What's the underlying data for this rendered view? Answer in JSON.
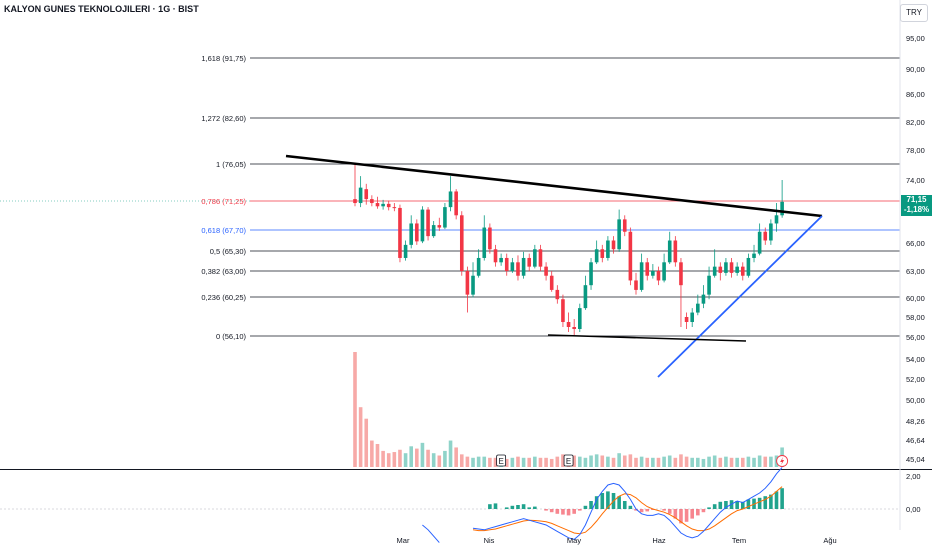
{
  "header": {
    "title": "KALYON GUNES TEKNOLOJILERI · 1G · BIST",
    "currency": "TRY"
  },
  "last_price": {
    "price": "71,15",
    "change": "-1,18%",
    "value": 71.15,
    "color": "#089981"
  },
  "colors": {
    "up": "#089981",
    "down": "#f23645",
    "vol_up": "#8fd3c9",
    "vol_down": "#f7a9a7",
    "trend": "#000000",
    "support": "#2962ff",
    "macd": "#2962ff",
    "signal": "#ff6d00"
  },
  "chart_data": [
    {
      "type": "candlestick",
      "title": "KALYON GUNES TEKNOLOJILERI · 1G · BIST",
      "yticks": [
        "95,00",
        "90,00",
        "86,00",
        "82,00",
        "78,00",
        "74,00",
        "71,15",
        "66,00",
        "63,00",
        "60,00",
        "58,00",
        "56,00",
        "54,00",
        "52,00",
        "50,00",
        "48,26",
        "46,64",
        "45,04"
      ],
      "xticks": [
        "Mar",
        "Nis",
        "May",
        "Haz",
        "Tem",
        "Ağu"
      ],
      "fib_levels": [
        {
          "label": "1,618 (91,75)",
          "value": 91.75,
          "color": "#131722"
        },
        {
          "label": "1,272 (82,60)",
          "value": 82.6,
          "color": "#131722"
        },
        {
          "label": "1 (76,05)",
          "value": 76.05,
          "color": "#131722"
        },
        {
          "label": "0,786 (71,25)",
          "value": 71.25,
          "color": "#f23645"
        },
        {
          "label": "0,618 (67,70)",
          "value": 67.7,
          "color": "#2962ff"
        },
        {
          "label": "0,5 (65,30)",
          "value": 65.3,
          "color": "#131722"
        },
        {
          "label": "0,382 (63,00)",
          "value": 63.0,
          "color": "#131722"
        },
        {
          "label": "0,236 (60,25)",
          "value": 60.25,
          "color": "#131722"
        },
        {
          "label": "0 (56,10)",
          "value": 56.1,
          "color": "#131722"
        }
      ],
      "trendlines": [
        {
          "name": "resistance",
          "from": [
            0,
            77.3
          ],
          "to": [
            110,
            68.9
          ]
        },
        {
          "name": "support",
          "from": [
            71,
            51.8
          ],
          "to": [
            110,
            68.9
          ]
        },
        {
          "name": "bottom",
          "from": [
            37,
            56.1
          ],
          "to": [
            72,
            55.6
          ]
        }
      ],
      "markers": [
        "E",
        "E"
      ],
      "candles": [
        [
          71.5,
          71.0,
          76.0,
          70.6
        ],
        [
          71.0,
          73.0,
          74.5,
          70.5
        ],
        [
          72.8,
          71.5,
          73.5,
          70.8
        ],
        [
          71.5,
          71.0,
          72.0,
          70.6
        ],
        [
          71.0,
          70.6,
          71.8,
          70.3
        ],
        [
          70.6,
          70.9,
          71.4,
          70.2
        ],
        [
          70.9,
          70.5,
          71.3,
          70.1
        ],
        [
          70.5,
          70.4,
          71.0,
          70.0
        ],
        [
          70.4,
          64.5,
          70.8,
          64.0
        ],
        [
          64.5,
          66.0,
          66.5,
          64.2
        ],
        [
          66.0,
          68.5,
          69.5,
          65.6
        ],
        [
          68.5,
          66.4,
          69.0,
          66.0
        ],
        [
          66.4,
          70.2,
          70.6,
          66.2
        ],
        [
          70.2,
          67.0,
          70.5,
          66.5
        ],
        [
          67.0,
          68.3,
          68.8,
          66.8
        ],
        [
          68.3,
          68.0,
          69.2,
          67.6
        ],
        [
          68.0,
          70.5,
          71.0,
          67.8
        ],
        [
          70.5,
          72.5,
          74.5,
          70.0
        ],
        [
          72.5,
          69.5,
          72.8,
          69.0
        ],
        [
          69.5,
          63.0,
          70.0,
          62.5
        ],
        [
          63.0,
          60.5,
          63.5,
          58.5
        ],
        [
          60.5,
          62.5,
          64.0,
          60.2
        ],
        [
          62.5,
          64.5,
          65.5,
          62.3
        ],
        [
          64.5,
          68.0,
          69.5,
          64.2
        ],
        [
          68.0,
          65.5,
          68.5,
          65.0
        ],
        [
          65.5,
          64.0,
          66.0,
          63.5
        ],
        [
          64.0,
          64.5,
          65.0,
          63.6
        ],
        [
          64.5,
          63.0,
          65.0,
          62.5
        ],
        [
          63.0,
          64.0,
          64.5,
          62.8
        ],
        [
          64.0,
          62.5,
          64.8,
          62.0
        ],
        [
          62.5,
          64.5,
          65.2,
          62.2
        ],
        [
          64.5,
          63.5,
          65.0,
          63.0
        ],
        [
          63.5,
          65.5,
          66.0,
          63.3
        ],
        [
          65.5,
          63.5,
          66.0,
          63.0
        ],
        [
          63.5,
          62.5,
          64.0,
          62.0
        ],
        [
          62.5,
          61.0,
          63.0,
          60.8
        ],
        [
          61.0,
          60.0,
          61.5,
          59.5
        ],
        [
          60.0,
          57.5,
          60.5,
          57.0
        ],
        [
          57.5,
          57.0,
          58.5,
          56.5
        ],
        [
          57.0,
          56.8,
          57.8,
          56.2
        ],
        [
          56.8,
          59.0,
          59.5,
          56.5
        ],
        [
          59.0,
          61.5,
          62.5,
          58.8
        ],
        [
          61.5,
          64.0,
          64.5,
          61.0
        ],
        [
          64.0,
          65.5,
          66.5,
          63.8
        ],
        [
          65.5,
          64.5,
          66.0,
          64.0
        ],
        [
          64.5,
          66.5,
          67.0,
          64.2
        ],
        [
          66.5,
          65.5,
          67.0,
          65.0
        ],
        [
          65.5,
          69.0,
          70.2,
          65.2
        ],
        [
          69.0,
          67.5,
          69.5,
          67.0
        ],
        [
          67.5,
          62.0,
          68.0,
          61.5
        ],
        [
          62.0,
          61.0,
          62.8,
          60.5
        ],
        [
          61.0,
          64.0,
          65.0,
          60.8
        ],
        [
          64.0,
          62.5,
          64.5,
          62.0
        ],
        [
          62.5,
          63.0,
          63.8,
          62.2
        ],
        [
          63.0,
          62.0,
          63.5,
          61.5
        ],
        [
          62.0,
          64.0,
          65.0,
          61.8
        ],
        [
          64.0,
          66.5,
          67.5,
          63.8
        ],
        [
          66.5,
          64.0,
          67.0,
          63.5
        ],
        [
          64.0,
          61.5,
          64.5,
          57.0
        ],
        [
          58.0,
          57.5,
          58.5,
          56.8
        ],
        [
          57.5,
          58.5,
          59.0,
          57.0
        ],
        [
          58.5,
          59.5,
          60.5,
          58.2
        ],
        [
          59.5,
          60.5,
          61.5,
          59.0
        ],
        [
          60.5,
          62.5,
          63.5,
          60.0
        ],
        [
          62.5,
          63.5,
          65.5,
          62.3
        ],
        [
          63.5,
          62.8,
          64.0,
          62.0
        ],
        [
          62.8,
          64.0,
          64.5,
          62.5
        ],
        [
          64.0,
          62.8,
          64.5,
          62.3
        ],
        [
          62.8,
          63.5,
          64.0,
          62.5
        ],
        [
          63.5,
          62.5,
          64.0,
          62.0
        ],
        [
          62.5,
          64.5,
          65.0,
          62.3
        ],
        [
          64.5,
          65.0,
          66.0,
          64.0
        ],
        [
          65.0,
          67.5,
          68.5,
          64.8
        ],
        [
          67.5,
          66.5,
          68.0,
          66.0
        ],
        [
          66.5,
          68.5,
          69.0,
          66.0
        ],
        [
          68.5,
          69.5,
          71.0,
          67.5
        ],
        [
          69.5,
          71.15,
          74.0,
          69.2
        ]
      ],
      "volume": [
        [
          10.0,
          0
        ],
        [
          5.2,
          0
        ],
        [
          4.2,
          0
        ],
        [
          2.3,
          0
        ],
        [
          2.0,
          0
        ],
        [
          1.4,
          0
        ],
        [
          1.2,
          0
        ],
        [
          1.3,
          0
        ],
        [
          1.5,
          0
        ],
        [
          1.2,
          1
        ],
        [
          1.8,
          1
        ],
        [
          1.6,
          0
        ],
        [
          2.1,
          1
        ],
        [
          1.5,
          0
        ],
        [
          1.2,
          1
        ],
        [
          1.0,
          0
        ],
        [
          1.4,
          1
        ],
        [
          2.3,
          1
        ],
        [
          1.7,
          0
        ],
        [
          1.1,
          0
        ],
        [
          0.9,
          0
        ],
        [
          0.8,
          1
        ],
        [
          0.9,
          1
        ],
        [
          0.9,
          1
        ],
        [
          0.8,
          0
        ],
        [
          0.8,
          0
        ],
        [
          0.9,
          1
        ],
        [
          0.7,
          0
        ],
        [
          0.8,
          1
        ],
        [
          0.9,
          0
        ],
        [
          0.8,
          1
        ],
        [
          0.8,
          0
        ],
        [
          0.9,
          1
        ],
        [
          0.8,
          0
        ],
        [
          0.8,
          0
        ],
        [
          0.7,
          0
        ],
        [
          0.9,
          0
        ],
        [
          1.1,
          0
        ],
        [
          0.9,
          0
        ],
        [
          1.0,
          0
        ],
        [
          0.9,
          1
        ],
        [
          0.8,
          1
        ],
        [
          1.0,
          1
        ],
        [
          1.1,
          1
        ],
        [
          1.0,
          0
        ],
        [
          0.9,
          1
        ],
        [
          0.8,
          0
        ],
        [
          1.2,
          1
        ],
        [
          1.0,
          0
        ],
        [
          1.1,
          0
        ],
        [
          0.8,
          0
        ],
        [
          0.9,
          1
        ],
        [
          0.8,
          0
        ],
        [
          0.8,
          1
        ],
        [
          0.8,
          0
        ],
        [
          0.9,
          1
        ],
        [
          1.0,
          1
        ],
        [
          0.8,
          0
        ],
        [
          1.1,
          0
        ],
        [
          0.9,
          0
        ],
        [
          0.8,
          1
        ],
        [
          0.8,
          1
        ],
        [
          0.7,
          1
        ],
        [
          0.9,
          1
        ],
        [
          1.0,
          1
        ],
        [
          0.8,
          0
        ],
        [
          0.9,
          1
        ],
        [
          0.8,
          0
        ],
        [
          0.8,
          1
        ],
        [
          0.8,
          0
        ],
        [
          0.9,
          1
        ],
        [
          0.8,
          1
        ],
        [
          1.0,
          1
        ],
        [
          0.9,
          0
        ],
        [
          0.9,
          1
        ],
        [
          1.0,
          1
        ],
        [
          1.7,
          1
        ]
      ]
    },
    {
      "type": "macd",
      "yticks": [
        "2,00",
        "0,00"
      ],
      "histogram": [
        0,
        0,
        0,
        0,
        0,
        0,
        0,
        0,
        0,
        0,
        0,
        0,
        0,
        0,
        0,
        0,
        0,
        0,
        0,
        0,
        0,
        0,
        0,
        0,
        0.3,
        0.35,
        0,
        0.1,
        0.2,
        0.25,
        0.3,
        0.1,
        0.15,
        0.0,
        -0.1,
        -0.2,
        -0.3,
        -0.35,
        -0.4,
        -0.3,
        -0.1,
        0.2,
        0.5,
        0.8,
        1.0,
        1.1,
        1.0,
        0.8,
        0.5,
        0.2,
        -0.1,
        -0.2,
        -0.15,
        -0.05,
        0.0,
        -0.1,
        -0.3,
        -0.6,
        -0.9,
        -0.8,
        -0.6,
        -0.4,
        -0.2,
        0.1,
        0.3,
        0.45,
        0.5,
        0.55,
        0.5,
        0.45,
        0.6,
        0.65,
        0.7,
        0.8,
        0.9,
        1.1,
        1.3
      ],
      "macd": [
        null,
        null,
        null,
        null,
        null,
        null,
        null,
        null,
        null,
        null,
        null,
        null,
        -1.0,
        -1.3,
        -1.7,
        -2.1,
        null,
        null,
        null,
        null,
        null,
        -1.2,
        -1.25,
        -1.3,
        -1.2,
        -1.1,
        -1.0,
        -0.9,
        -0.8,
        -0.7,
        -0.6,
        -0.7,
        -0.8,
        -0.9,
        -1.0,
        -1.2,
        -1.4,
        -1.6,
        -1.8,
        -1.9,
        -1.6,
        -1.0,
        -0.2,
        0.6,
        1.1,
        1.5,
        1.6,
        1.5,
        1.1,
        0.6,
        0.0,
        -0.3,
        -0.4,
        -0.4,
        -0.3,
        -0.4,
        -0.7,
        -1.1,
        -1.5,
        -1.7,
        -1.8,
        -1.7,
        -1.4,
        -1.0,
        -0.6,
        -0.2,
        0.1,
        0.3,
        0.5,
        0.4,
        0.6,
        0.8,
        1.0,
        1.3,
        1.7,
        2.2,
        2.6
      ],
      "signal": [
        null,
        null,
        null,
        null,
        null,
        null,
        null,
        null,
        null,
        null,
        null,
        null,
        null,
        null,
        null,
        null,
        null,
        null,
        null,
        null,
        null,
        -1.3,
        -1.35,
        -1.35,
        -1.3,
        -1.25,
        -1.15,
        -1.05,
        -0.95,
        -0.85,
        -0.75,
        -0.7,
        -0.72,
        -0.75,
        -0.8,
        -0.9,
        -1.05,
        -1.2,
        -1.35,
        -1.5,
        -1.55,
        -1.45,
        -1.15,
        -0.75,
        -0.3,
        0.1,
        0.5,
        0.8,
        0.95,
        0.9,
        0.7,
        0.4,
        0.15,
        0.0,
        -0.1,
        -0.2,
        -0.35,
        -0.55,
        -0.8,
        -1.05,
        -1.25,
        -1.35,
        -1.35,
        -1.25,
        -1.05,
        -0.8,
        -0.55,
        -0.3,
        -0.1,
        0.0,
        0.15,
        0.3,
        0.45,
        0.6,
        0.8,
        1.1,
        1.4
      ]
    }
  ]
}
